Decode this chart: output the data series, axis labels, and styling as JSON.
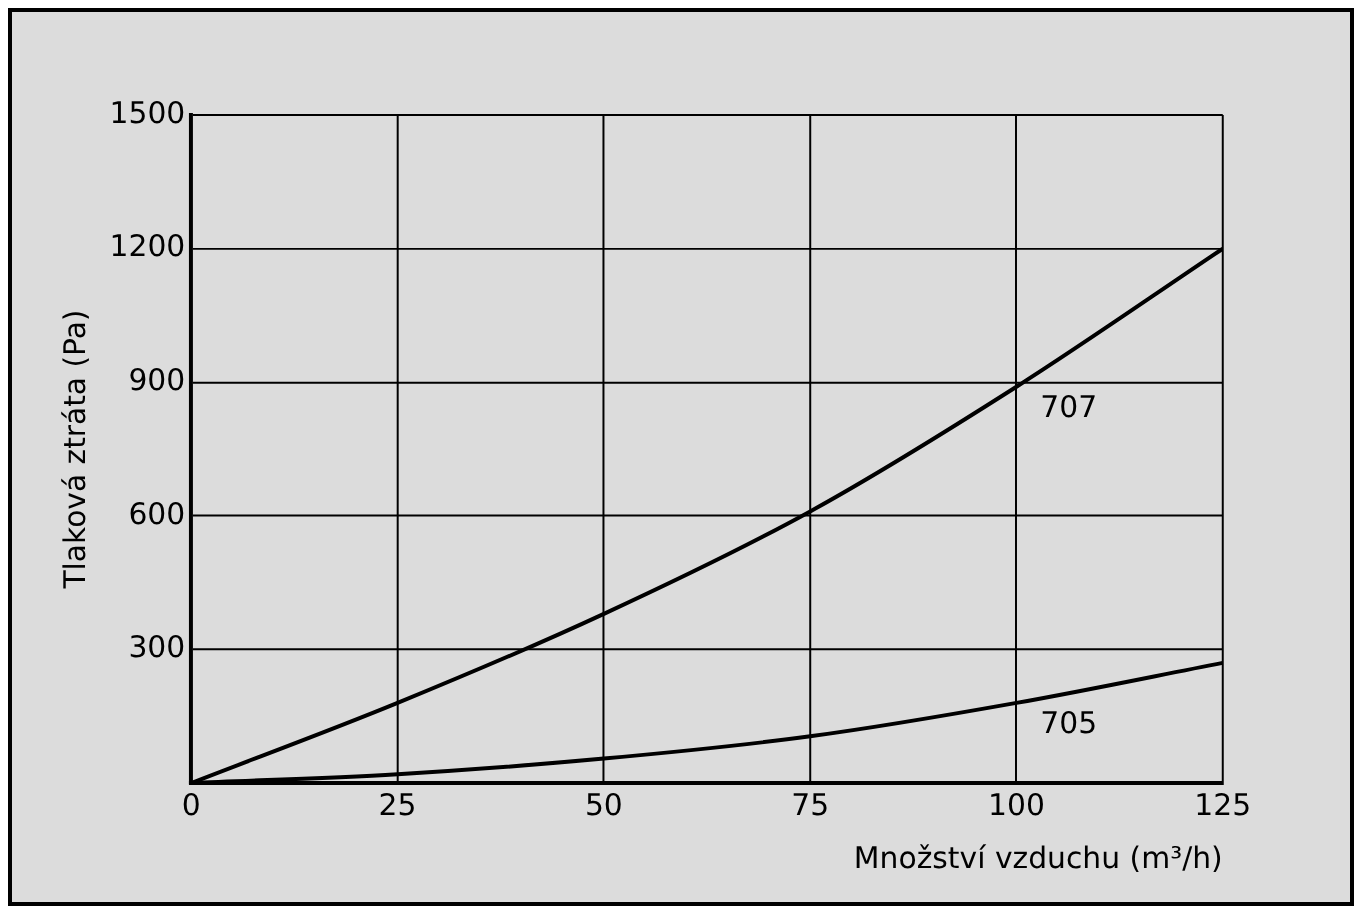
{
  "chart_data": {
    "type": "line",
    "xlabel": "Množství vzduchu (m³/h)",
    "ylabel": "Tlaková ztráta (Pa)",
    "x": [
      0,
      25,
      50,
      75,
      100,
      125
    ],
    "series": [
      {
        "name": "707",
        "color": "#000000",
        "values": [
          0,
          180,
          380,
          610,
          890,
          1200
        ]
      },
      {
        "name": "705",
        "color": "#000000",
        "values": [
          0,
          20,
          55,
          105,
          180,
          270
        ]
      }
    ],
    "xlim": [
      0,
      125
    ],
    "xticks": [
      0,
      25,
      50,
      75,
      100,
      125
    ],
    "ylim": [
      0,
      1500
    ],
    "yticks": [
      {
        "value": 0,
        "label": null
      },
      300,
      600,
      900,
      1200,
      1500
    ],
    "grid": true,
    "legend": false,
    "marker": "none",
    "line_style": "solid"
  }
}
